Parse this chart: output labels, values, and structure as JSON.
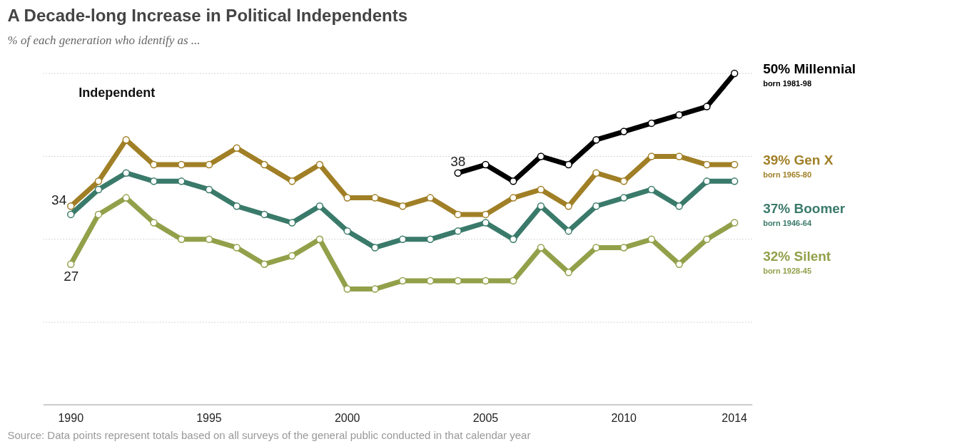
{
  "chart_data": {
    "type": "line",
    "title": "A Decade-long Increase in Political Independents",
    "subtitle": "% of each generation who identify as ...",
    "x": [
      1990,
      1991,
      1992,
      1993,
      1994,
      1995,
      1996,
      1997,
      1998,
      1999,
      2000,
      2001,
      2002,
      2003,
      2004,
      2005,
      2006,
      2007,
      2008,
      2009,
      2010,
      2011,
      2012,
      2013,
      2014
    ],
    "series": [
      {
        "name": "50% Millennial",
        "color": "#000000",
        "x": [
          2004,
          2005,
          2006,
          2007,
          2008,
          2009,
          2010,
          2011,
          2012,
          2013,
          2014
        ],
        "values": [
          38,
          39,
          37,
          40,
          39,
          42,
          43,
          44,
          45,
          46,
          50
        ],
        "value_labels": [
          "38",
          null,
          null,
          null,
          null,
          null,
          null,
          null,
          null,
          null,
          null
        ]
      },
      {
        "name": "39% Gen X",
        "color": "#a07f26",
        "values": [
          34,
          37,
          42,
          39,
          39,
          39,
          41,
          39,
          37,
          39,
          35,
          35,
          34,
          35,
          33,
          33,
          35,
          36,
          34,
          38,
          37,
          40,
          40,
          39,
          39
        ],
        "value_labels": [
          "34",
          null,
          null,
          null,
          null,
          null,
          null,
          null,
          null,
          null,
          null,
          null,
          null,
          null,
          null,
          null,
          null,
          null,
          null,
          null,
          null,
          null,
          null,
          null,
          null
        ]
      },
      {
        "name": "37% Boomer",
        "color": "#3a7a6a",
        "values": [
          33,
          36,
          38,
          37,
          37,
          36,
          34,
          33,
          32,
          34,
          31,
          29,
          30,
          30,
          31,
          32,
          30,
          34,
          31,
          34,
          35,
          36,
          34,
          37,
          37
        ]
      },
      {
        "name": "32% Silent",
        "color": "#93a04a",
        "values": [
          27,
          33,
          35,
          32,
          30,
          30,
          29,
          27,
          28,
          30,
          24,
          24,
          25,
          25,
          25,
          25,
          25,
          29,
          26,
          29,
          29,
          30,
          27,
          30,
          32
        ],
        "value_labels": [
          "27",
          null,
          null,
          null,
          null,
          null,
          null,
          null,
          null,
          null,
          null,
          null,
          null,
          null,
          null,
          null,
          null,
          null,
          null,
          null,
          null,
          null,
          null,
          null,
          null
        ]
      }
    ],
    "annotations": [
      "Independent",
      "born 1981-98",
      "born 1965-80",
      "born 1946-64",
      "born 1928-45",
      "Source: Data points represent totals based on all surveys of the general public conducted in that calendar year"
    ],
    "xlim": [
      1989.0,
      2014.65
    ],
    "ylim": [
      10,
      50
    ],
    "xticks": [
      1990,
      1995,
      2000,
      2005,
      2010,
      2014
    ],
    "yticks": [
      {
        "value": 20,
        "label": null
      },
      {
        "value": 30,
        "label": null
      },
      {
        "value": 40,
        "label": null
      },
      {
        "value": 50,
        "label": null
      }
    ],
    "grid": "y",
    "tick_labels": "x",
    "marker": "circle",
    "line_style": "solid"
  }
}
